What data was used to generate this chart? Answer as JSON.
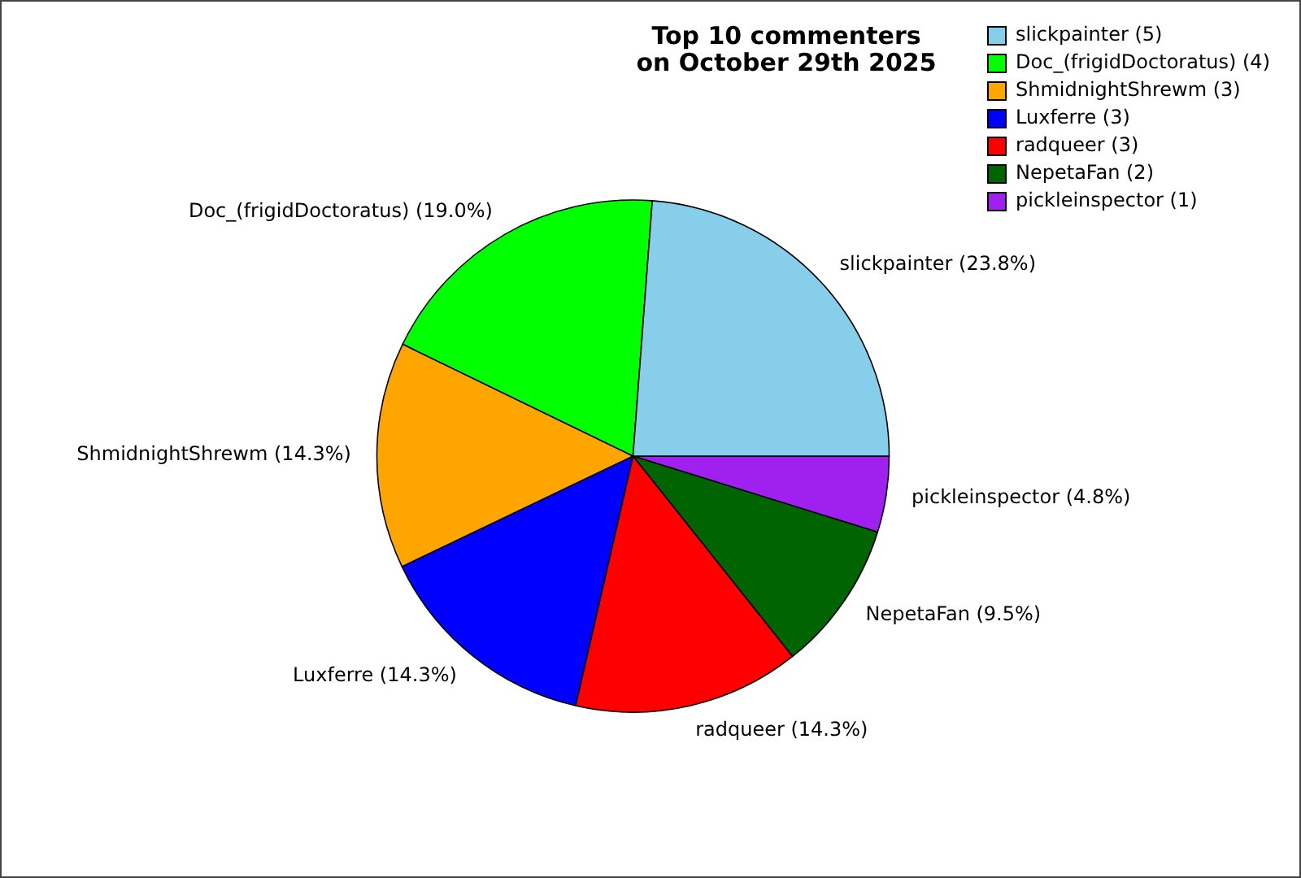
{
  "chart_data": {
    "type": "pie",
    "title": "Top 10 commenters\non October 29th 2025",
    "categories": [
      "slickpainter (5)",
      "Doc_(frigidDoctoratus) (4)",
      "ShmidnightShrewm (3)",
      "Luxferre (3)",
      "radqueer (3)",
      "NepetaFan (2)",
      "pickleinspector (1)"
    ],
    "values": [
      23.8,
      19.0,
      14.3,
      14.3,
      14.3,
      9.5,
      4.8
    ],
    "colors": [
      "#87ceeb",
      "#00ff00",
      "#ffa500",
      "#0000ff",
      "#ff0000",
      "#006400",
      "#a020f0"
    ],
    "value_labels": [
      "slickpainter (23.8%)",
      "Doc_(frigidDoctoratus) (19.0%)",
      "ShmidnightShrewm (14.3%)",
      "Luxferre (14.3%)",
      "radqueer (14.3%)",
      "NepetaFan (9.5%)",
      "pickleinspector (4.8%)"
    ],
    "legend": "top right"
  }
}
